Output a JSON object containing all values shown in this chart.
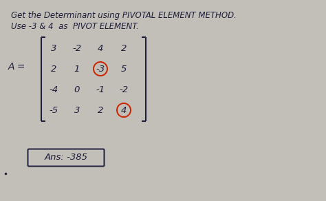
{
  "background_color": "#c2bfb8",
  "title_line1": "Get the Determinant using PIVOTAL ELEMENT METHOD.",
  "title_line2": "Use -3 & 4  as  PIVOT ELEMENT.",
  "matrix_label": "A =",
  "matrix": [
    [
      "3",
      "-2",
      "4",
      "2"
    ],
    [
      "2",
      "1",
      "-3",
      "5"
    ],
    [
      "-4",
      "0",
      "-1",
      "-2"
    ],
    [
      "-5",
      "3",
      "2",
      "4"
    ]
  ],
  "circled_elements": [
    [
      1,
      2
    ],
    [
      3,
      3
    ]
  ],
  "answer_text": "Ans: -385",
  "font_color": "#1e1e3a",
  "circle_color": "#cc2200",
  "answer_box_color": "#1e1e3a"
}
